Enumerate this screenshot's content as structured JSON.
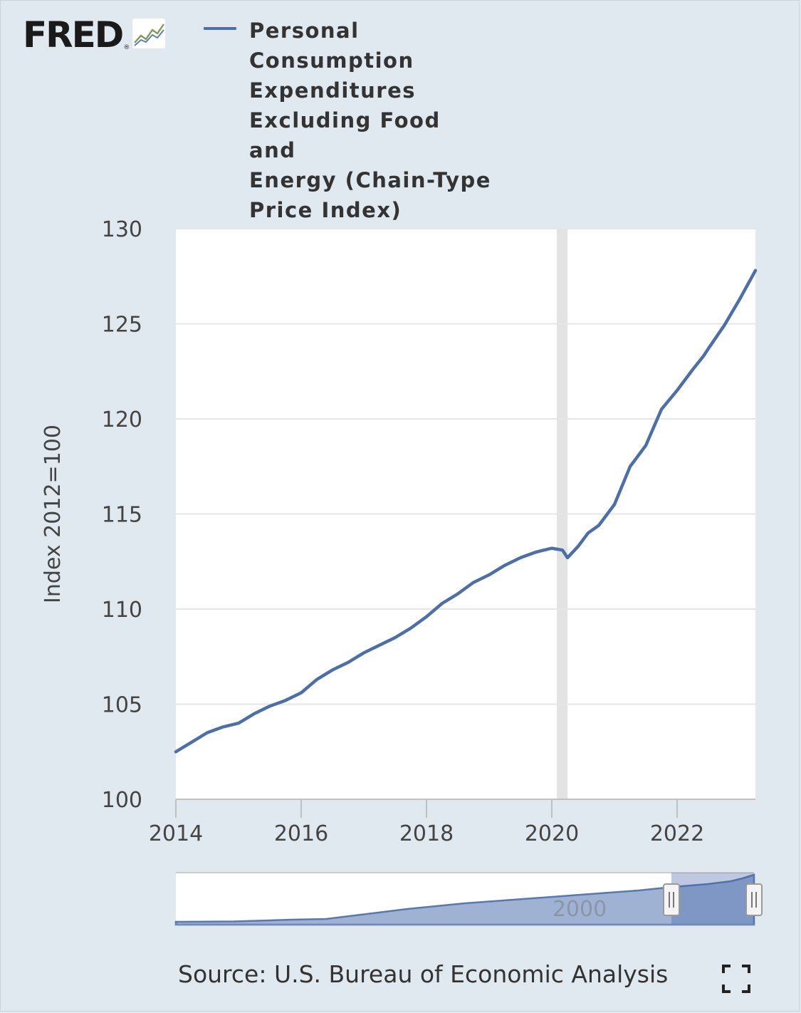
{
  "logo": {
    "text": "FRED",
    "reg": "®",
    "icon": "fred-chart-icon"
  },
  "legend": {
    "series_color": "#4e6fa3",
    "label": "Personal\nConsumption\nExpenditures\nExcluding Food and\nEnergy (Chain-Type\nPrice Index)"
  },
  "source": "Source: U.S. Bureau of Economic Analysis",
  "fullscreen_icon": "fullscreen-icon",
  "navigator": {
    "label": "2000"
  },
  "chart_data": {
    "type": "line",
    "ylabel": "Index 2012=100",
    "ylim": [
      100,
      130
    ],
    "xlim": [
      2014.0,
      2023.25
    ],
    "y_ticks": [
      100,
      105,
      110,
      115,
      120,
      125,
      130
    ],
    "x_ticks": [
      2014,
      2016,
      2018,
      2020,
      2022
    ],
    "grid": true,
    "recession_shading": [
      2020.08,
      2020.25
    ],
    "series": [
      {
        "name": "Personal Consumption Expenditures Excluding Food and Energy (Chain-Type Price Index)",
        "color": "#4e6fa3",
        "x": [
          2014.0,
          2014.25,
          2014.5,
          2014.75,
          2015.0,
          2015.25,
          2015.5,
          2015.75,
          2016.0,
          2016.25,
          2016.5,
          2016.75,
          2017.0,
          2017.25,
          2017.5,
          2017.75,
          2018.0,
          2018.25,
          2018.5,
          2018.75,
          2019.0,
          2019.25,
          2019.5,
          2019.75,
          2020.0,
          2020.17,
          2020.25,
          2020.42,
          2020.58,
          2020.75,
          2021.0,
          2021.25,
          2021.5,
          2021.75,
          2022.0,
          2022.25,
          2022.42,
          2022.5,
          2022.75,
          2023.0,
          2023.25
        ],
        "y": [
          102.5,
          103.0,
          103.5,
          103.8,
          104.0,
          104.5,
          104.9,
          105.2,
          105.6,
          106.3,
          106.8,
          107.2,
          107.7,
          108.1,
          108.5,
          109.0,
          109.6,
          110.3,
          110.8,
          111.4,
          111.8,
          112.3,
          112.7,
          113.0,
          113.2,
          113.1,
          112.7,
          113.3,
          114.0,
          114.4,
          115.5,
          117.5,
          118.6,
          120.5,
          121.5,
          122.6,
          123.3,
          123.7,
          124.9,
          126.3,
          127.8
        ]
      }
    ]
  }
}
